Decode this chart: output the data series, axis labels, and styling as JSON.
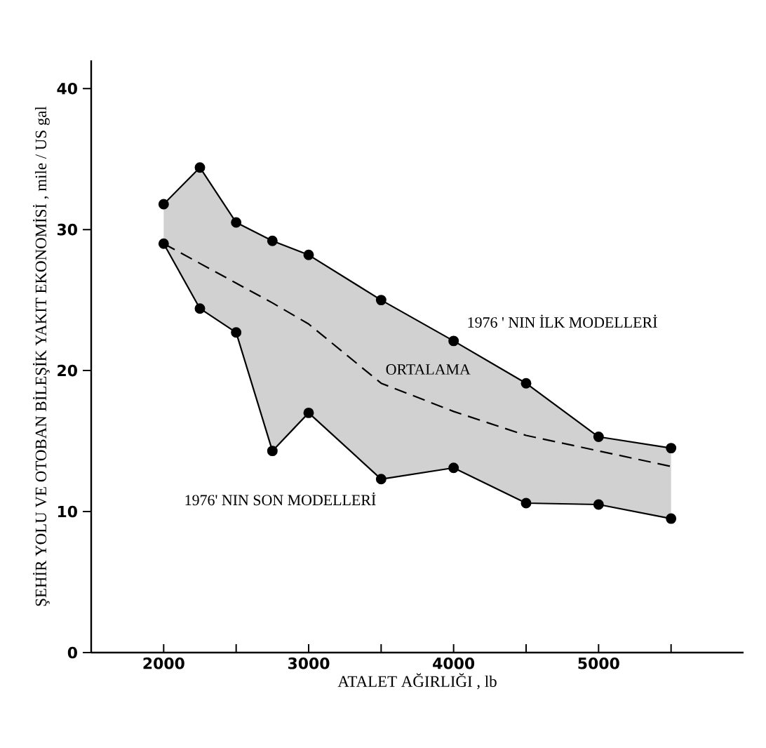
{
  "chart_data": {
    "type": "line",
    "xlabel": "ATALET AĞIRLIĞI , lb",
    "ylabel": "ŞEHİR YOLU VE OTOBAN BİLEŞİK YAKIT EKONOMİSİ , mile / US gal",
    "xlim": [
      1500,
      6000
    ],
    "ylim": [
      0,
      42
    ],
    "xticks": [
      2000,
      {
        "value": 2500,
        "label": null
      },
      3000,
      {
        "value": 3500,
        "label": null
      },
      4000,
      {
        "value": 4500,
        "label": null
      },
      5000,
      {
        "value": 5500,
        "label": null
      }
    ],
    "yticks": [
      0,
      10,
      20,
      30,
      40
    ],
    "grid": false,
    "legend": false,
    "series": [
      {
        "name": "1976 ' NIN İLK MODELLERİ",
        "color": "#000000",
        "marker": "circle",
        "line_style": "solid",
        "x": [
          2000,
          2250,
          2500,
          2750,
          3000,
          3500,
          4000,
          4500,
          5000,
          5500
        ],
        "values": [
          31.8,
          34.4,
          30.5,
          29.2,
          28.2,
          25.0,
          22.1,
          19.1,
          15.3,
          14.5
        ]
      },
      {
        "name": "1976' NIN SON MODELLERİ",
        "color": "#000000",
        "marker": "circle",
        "line_style": "solid",
        "x": [
          2000,
          2250,
          2500,
          2750,
          3000,
          3500,
          4000,
          4500,
          5000,
          5500
        ],
        "values": [
          29.0,
          24.4,
          22.7,
          14.3,
          17.0,
          12.3,
          13.1,
          10.6,
          10.5,
          9.5
        ]
      },
      {
        "name": "ORTALAMA",
        "color": "#000000",
        "marker": "none",
        "line_style": "dashed",
        "x": [
          2000,
          2250,
          2500,
          2750,
          3000,
          3500,
          4000,
          4500,
          5000,
          5500
        ],
        "values": [
          29.0,
          27.6,
          26.2,
          24.8,
          23.3,
          19.1,
          17.1,
          15.4,
          14.3,
          13.2
        ],
        "lower": [
          29.0,
          24.4,
          22.7,
          14.3,
          17.0,
          12.3,
          13.1,
          10.6,
          10.5,
          9.5
        ],
        "upper": [
          31.8,
          34.4,
          30.5,
          29.2,
          28.2,
          25.0,
          22.1,
          19.1,
          15.3,
          14.5
        ]
      }
    ]
  }
}
